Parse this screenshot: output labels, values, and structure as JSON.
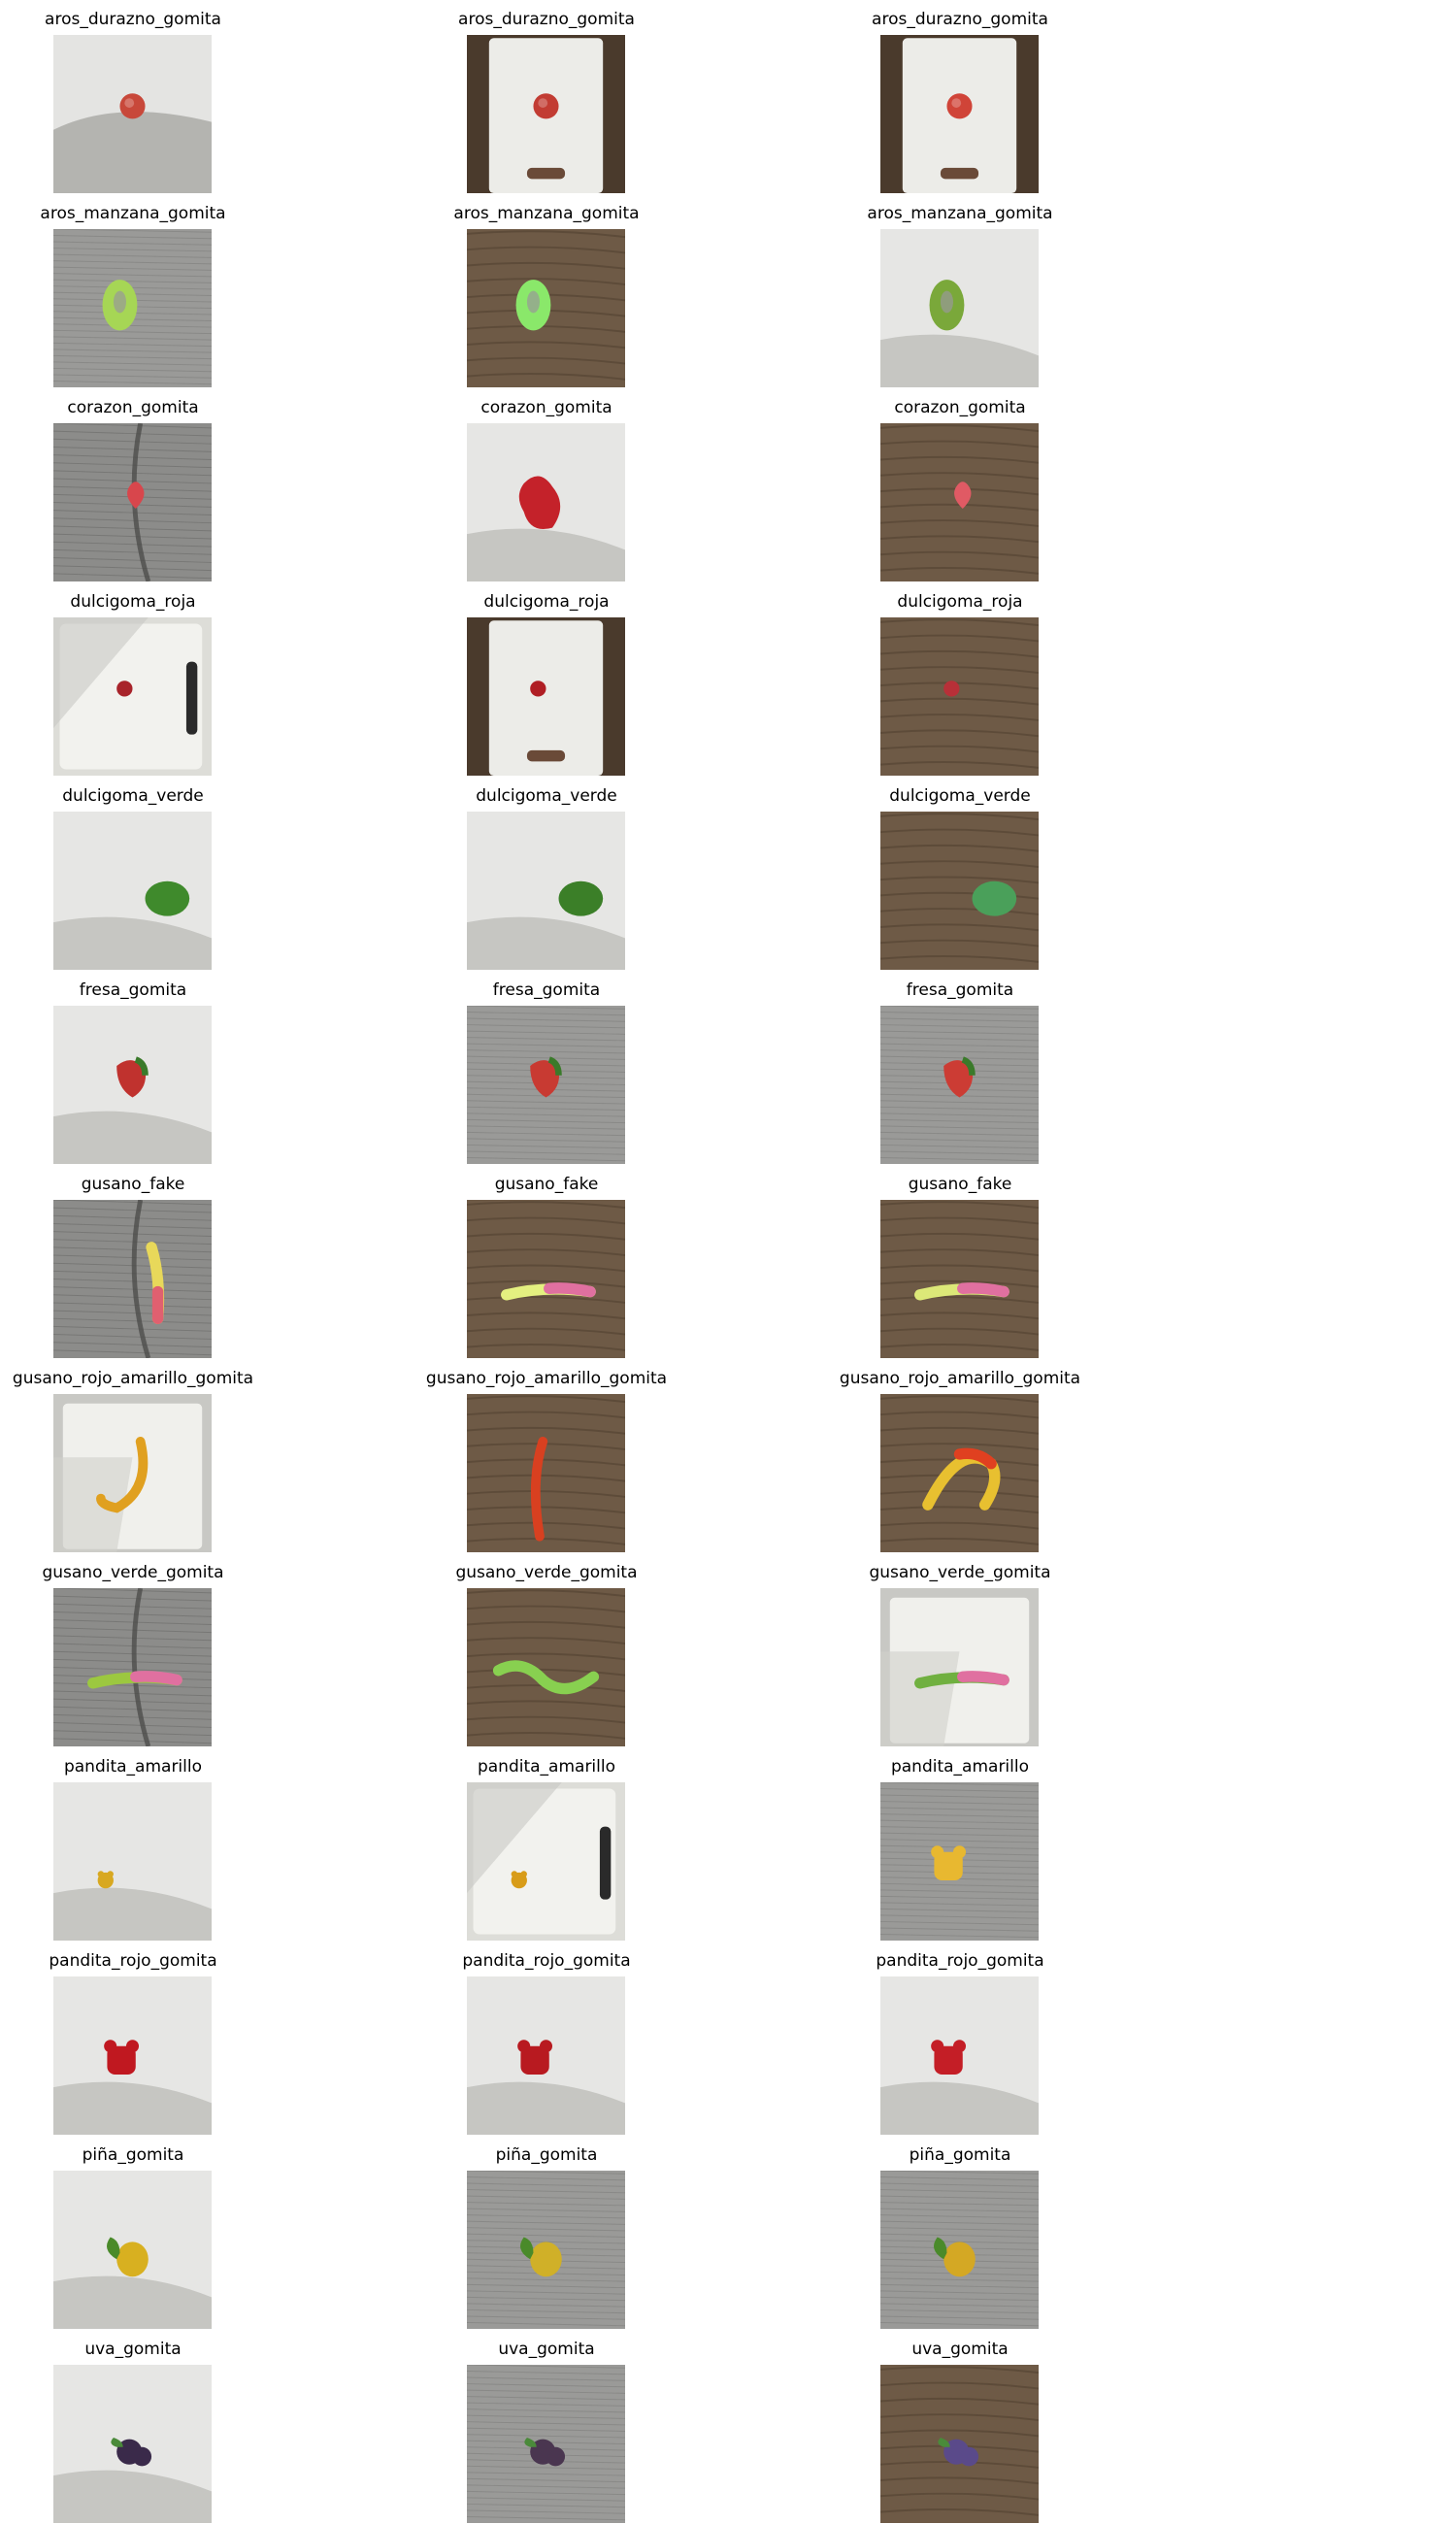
{
  "figure": {
    "columns": 3,
    "panels": [
      {
        "title": "aros_durazno_gomita",
        "background": "white-board-shadow",
        "candy": {
          "shape": "round",
          "color": "#c8483a"
        }
      },
      {
        "title": "aros_durazno_gomita",
        "background": "white-board-wood",
        "candy": {
          "shape": "round",
          "color": "#c23c33"
        }
      },
      {
        "title": "aros_durazno_gomita",
        "background": "white-board-wood",
        "candy": {
          "shape": "round",
          "color": "#d04438"
        }
      },
      {
        "title": "aros_manzana_gomita",
        "background": "gray-fabric",
        "candy": {
          "shape": "ring",
          "color": "#a6d655"
        }
      },
      {
        "title": "aros_manzana_gomita",
        "background": "wood-table",
        "candy": {
          "shape": "ring",
          "color": "#8ae86a"
        }
      },
      {
        "title": "aros_manzana_gomita",
        "background": "white-surface",
        "candy": {
          "shape": "ring",
          "color": "#7aa83a"
        }
      },
      {
        "title": "corazon_gomita",
        "background": "denim",
        "candy": {
          "shape": "heart",
          "color": "#d8464c"
        }
      },
      {
        "title": "corazon_gomita",
        "background": "white-surface",
        "candy": {
          "shape": "heart-large",
          "color": "#c4222a"
        }
      },
      {
        "title": "corazon_gomita",
        "background": "wood-table",
        "candy": {
          "shape": "heart",
          "color": "#e05a64"
        }
      },
      {
        "title": "dulcigoma_roja",
        "background": "white-board-handle",
        "candy": {
          "shape": "round-small",
          "color": "#a8232a"
        }
      },
      {
        "title": "dulcigoma_roja",
        "background": "white-board-wood",
        "candy": {
          "shape": "round-small",
          "color": "#b01e24"
        }
      },
      {
        "title": "dulcigoma_roja",
        "background": "wood-table",
        "candy": {
          "shape": "round-small",
          "color": "#b83038"
        }
      },
      {
        "title": "dulcigoma_verde",
        "background": "white-surface",
        "candy": {
          "shape": "oval",
          "color": "#3f8a2c"
        }
      },
      {
        "title": "dulcigoma_verde",
        "background": "white-surface",
        "candy": {
          "shape": "oval",
          "color": "#3b7f28"
        }
      },
      {
        "title": "dulcigoma_verde",
        "background": "wood-table",
        "candy": {
          "shape": "oval",
          "color": "#4aa05a"
        }
      },
      {
        "title": "fresa_gomita",
        "background": "white-surface",
        "candy": {
          "shape": "strawberry",
          "color": "#c0322e"
        }
      },
      {
        "title": "fresa_gomita",
        "background": "gray-fabric",
        "candy": {
          "shape": "strawberry",
          "color": "#c83a32"
        }
      },
      {
        "title": "fresa_gomita",
        "background": "gray-fabric",
        "candy": {
          "shape": "strawberry",
          "color": "#cc3c34"
        }
      },
      {
        "title": "gusano_fake",
        "background": "denim",
        "candy": {
          "shape": "worm-vertical",
          "color": "#e8d85a"
        }
      },
      {
        "title": "gusano_fake",
        "background": "wood-table",
        "candy": {
          "shape": "worm-horizontal",
          "color": "#e4f080"
        }
      },
      {
        "title": "gusano_fake",
        "background": "wood-table",
        "candy": {
          "shape": "worm-horizontal",
          "color": "#dce878"
        }
      },
      {
        "title": "gusano_rojo_amarillo_gomita",
        "background": "white-board",
        "candy": {
          "shape": "worm-hook",
          "color": "#e0a020"
        }
      },
      {
        "title": "gusano_rojo_amarillo_gomita",
        "background": "wood-table",
        "candy": {
          "shape": "worm-diagonal",
          "color": "#d84020"
        }
      },
      {
        "title": "gusano_rojo_amarillo_gomita",
        "background": "wood-table",
        "candy": {
          "shape": "worm-arc",
          "color": "#e8c030"
        }
      },
      {
        "title": "gusano_verde_gomita",
        "background": "denim",
        "candy": {
          "shape": "worm-horizontal",
          "color": "#9cc840"
        }
      },
      {
        "title": "gusano_verde_gomita",
        "background": "wood-table",
        "candy": {
          "shape": "worm-wave",
          "color": "#88d050"
        }
      },
      {
        "title": "gusano_verde_gomita",
        "background": "white-board",
        "candy": {
          "shape": "worm-horizontal",
          "color": "#70b040"
        }
      },
      {
        "title": "pandita_amarillo",
        "background": "white-surface",
        "candy": {
          "shape": "bear-small",
          "color": "#d8a820"
        }
      },
      {
        "title": "pandita_amarillo",
        "background": "white-board-handle",
        "candy": {
          "shape": "bear-small",
          "color": "#d89c18"
        }
      },
      {
        "title": "pandita_amarillo",
        "background": "gray-fabric",
        "candy": {
          "shape": "bear",
          "color": "#e8b830"
        }
      },
      {
        "title": "pandita_rojo_gomita",
        "background": "white-surface",
        "candy": {
          "shape": "bear",
          "color": "#c01820"
        }
      },
      {
        "title": "pandita_rojo_gomita",
        "background": "white-surface",
        "candy": {
          "shape": "bear",
          "color": "#b81a20"
        }
      },
      {
        "title": "pandita_rojo_gomita",
        "background": "white-surface",
        "candy": {
          "shape": "bear",
          "color": "#c41e26"
        }
      },
      {
        "title": "piña_gomita",
        "background": "white-surface",
        "candy": {
          "shape": "pineapple",
          "color": "#d8b020"
        }
      },
      {
        "title": "piña_gomita",
        "background": "gray-fabric",
        "candy": {
          "shape": "pineapple",
          "color": "#d0b028"
        }
      },
      {
        "title": "piña_gomita",
        "background": "gray-fabric",
        "candy": {
          "shape": "pineapple",
          "color": "#d4a824"
        }
      },
      {
        "title": "uva_gomita",
        "background": "white-surface",
        "candy": {
          "shape": "grape",
          "color": "#3a2a4a"
        }
      },
      {
        "title": "uva_gomita",
        "background": "gray-fabric",
        "candy": {
          "shape": "grape",
          "color": "#4a3650"
        }
      },
      {
        "title": "uva_gomita",
        "background": "wood-table",
        "candy": {
          "shape": "grape",
          "color": "#5a4a8a"
        }
      }
    ]
  }
}
